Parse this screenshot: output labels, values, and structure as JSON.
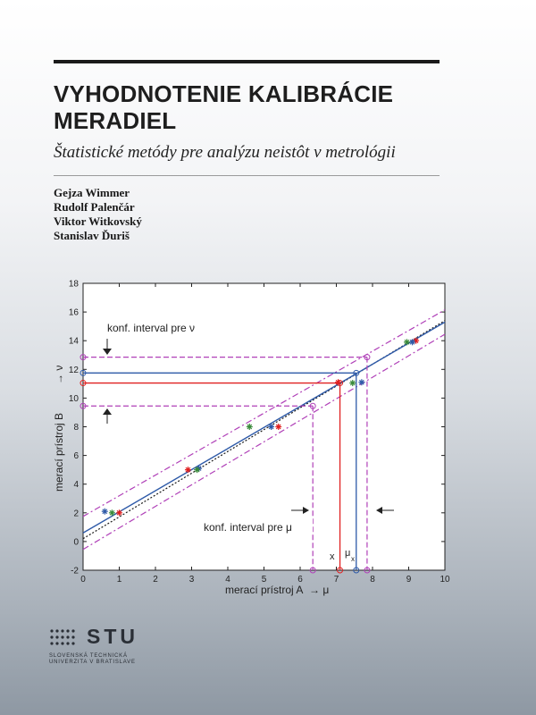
{
  "book": {
    "title_line1": "VYHODNOTENIE KALIBRÁCIE",
    "title_line2": "MERADIEL",
    "subtitle": "Štatistické metódy pre analýzu neistôt v metrológii",
    "authors": [
      "Gejza Wimmer",
      "Rudolf Palenčár",
      "Viktor Witkovský",
      "Stanislav Ďuriš"
    ]
  },
  "logo": {
    "word": "STU",
    "line1": "SLOVENSKÁ TECHNICKÁ",
    "line2": "UNIVERZITA V BRATISLAVE"
  },
  "colors": {
    "blue": "#2e5aa8",
    "red": "#e02020",
    "purple": "#b040b8",
    "green": "#3a8a3a",
    "dark": "#1a1a1a"
  },
  "chart_data": {
    "type": "scatter",
    "xlabel": "merací prístroj A",
    "xlabel_arrow": "→ μ",
    "ylabel": "merací prístroj B",
    "ylabel_arrow": "→ ν",
    "xlim": [
      0,
      10
    ],
    "ylim": [
      -2,
      18
    ],
    "xticks": [
      0,
      1,
      2,
      3,
      4,
      5,
      6,
      7,
      8,
      9,
      10
    ],
    "yticks": [
      -2,
      0,
      2,
      4,
      6,
      8,
      10,
      12,
      14,
      16,
      18
    ],
    "grid": false,
    "annotations": {
      "conf_nu": "konf. interval pre ν",
      "conf_mu": "konf. interval pre μ",
      "x_label": "x",
      "mu_label": "μ",
      "mu_sub": "x"
    },
    "fit_line": {
      "intercept": 0.6,
      "slope": 1.47
    },
    "dotted_line": {
      "intercept": 0.2,
      "slope": 1.52
    },
    "band_upper": {
      "intercept": 1.75,
      "slope": 1.44
    },
    "band_lower": {
      "intercept": -0.55,
      "slope": 1.5
    },
    "series": [
      {
        "color": "red",
        "x": [
          1.0,
          2.9,
          5.4,
          7.05,
          9.2
        ],
        "y": [
          2.0,
          5.0,
          8.0,
          11.1,
          14.0
        ]
      },
      {
        "color": "blue",
        "x": [
          0.6,
          3.2,
          5.2,
          7.7,
          9.1
        ],
        "y": [
          2.1,
          5.1,
          8.0,
          11.1,
          13.9
        ]
      },
      {
        "color": "green",
        "x": [
          0.8,
          3.15,
          4.6,
          7.45,
          8.95
        ],
        "y": [
          2.0,
          5.0,
          8.0,
          11.05,
          13.9
        ]
      }
    ],
    "markers": {
      "x_value": 7.1,
      "y_value": 11.05,
      "mu_x": 7.55,
      "nu_value": 11.75,
      "mu_ci": [
        6.35,
        7.85
      ],
      "nu_ci": [
        9.45,
        12.85
      ]
    }
  }
}
